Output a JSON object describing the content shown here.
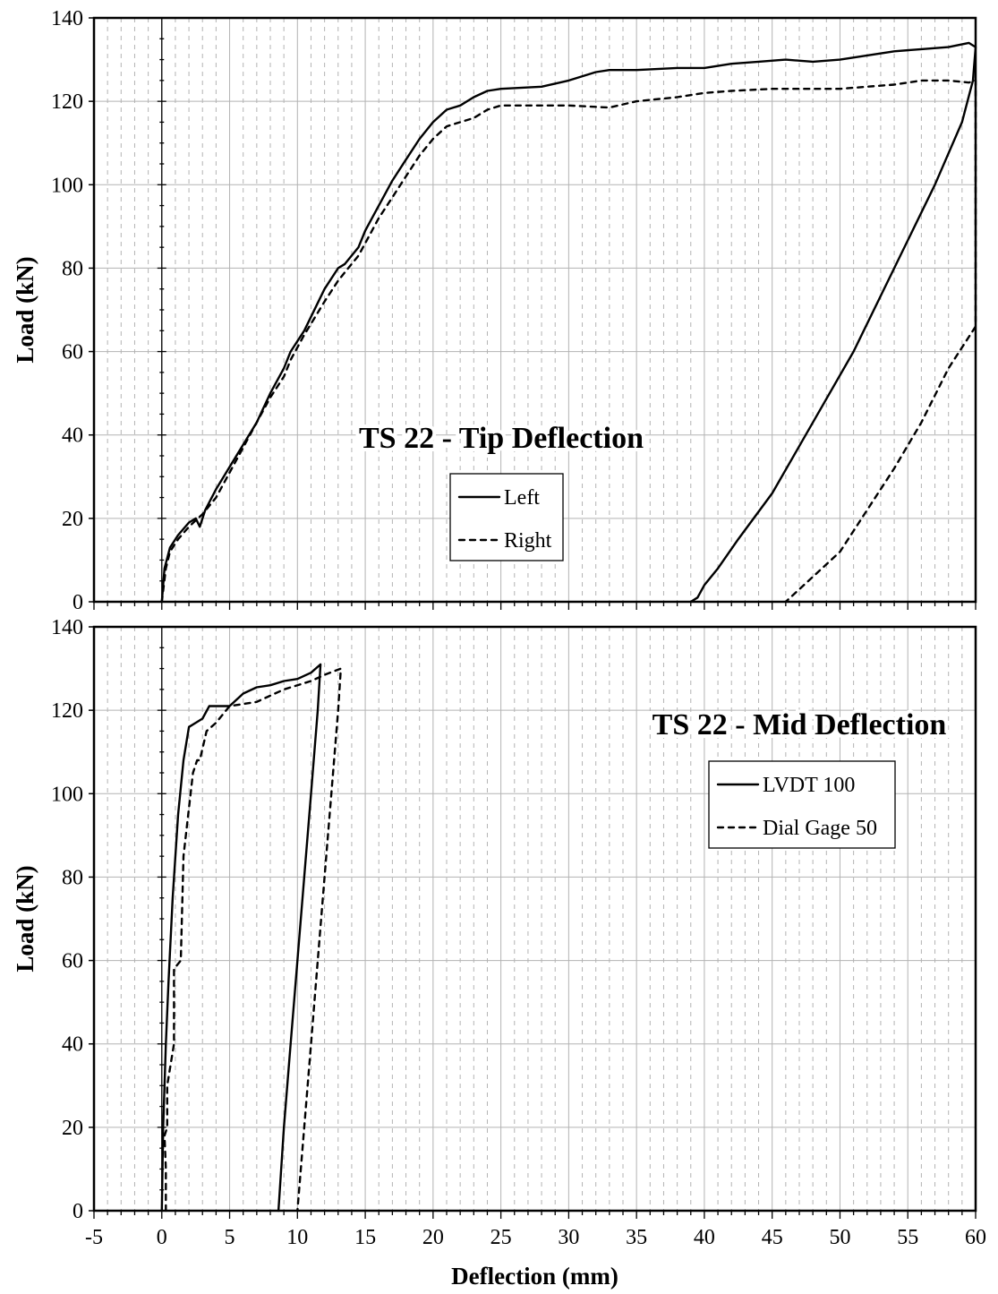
{
  "chart_data": [
    {
      "type": "line",
      "title": "TS 22 - Tip Deflection",
      "xlabel": "",
      "ylabel": "Load (kN)",
      "xlim": [
        -5,
        60
      ],
      "ylim": [
        0,
        140
      ],
      "xticks": [],
      "yticks": [
        0,
        20,
        40,
        60,
        80,
        100,
        120,
        140
      ],
      "grid": true,
      "legend_position": "center",
      "series": [
        {
          "name": "Left",
          "style": "solid",
          "x": [
            0,
            0.2,
            0.6,
            1.2,
            2,
            2.5,
            2.8,
            3.2,
            4,
            5.5,
            7,
            8,
            9,
            9.5,
            10.5,
            12,
            13,
            13.5,
            14.5,
            15,
            16,
            17,
            18,
            19,
            20,
            21,
            22,
            23,
            24,
            25,
            28,
            30,
            32,
            33,
            35,
            38,
            40,
            42,
            44,
            46,
            48,
            50,
            52,
            54,
            56,
            58,
            59.5,
            60,
            59.8,
            59,
            57,
            54,
            51,
            48,
            45,
            42.5,
            41,
            40,
            39.5,
            39
          ],
          "y": [
            0,
            8,
            13,
            16,
            19,
            20,
            18,
            22,
            27,
            35,
            43,
            50,
            56,
            60,
            65,
            75,
            80,
            81,
            85,
            89,
            95,
            101,
            106,
            111,
            115,
            118,
            119,
            121,
            122.5,
            123,
            123.5,
            125,
            127,
            127.5,
            127.5,
            128,
            128,
            129,
            129.5,
            130,
            129.5,
            130,
            131,
            132,
            132.5,
            133,
            134,
            133,
            125,
            115,
            100,
            80,
            60,
            43,
            26,
            15,
            8,
            4,
            1,
            0
          ]
        },
        {
          "name": "Right",
          "style": "dashed",
          "x": [
            0,
            0.3,
            0.6,
            1.2,
            2,
            3,
            4,
            5.5,
            7,
            8,
            9,
            9.5,
            10.5,
            12,
            13,
            13.5,
            14.5,
            15,
            16,
            17,
            18,
            19,
            20,
            21,
            22,
            23,
            24,
            25,
            30,
            33,
            35,
            38,
            40,
            42,
            45,
            48,
            50,
            52,
            54,
            56,
            58,
            59.5,
            60,
            60,
            58,
            56,
            54,
            52,
            50,
            48,
            46
          ],
          "y": [
            0,
            8,
            12,
            15,
            18,
            21,
            25,
            34,
            43,
            49,
            54,
            58,
            64,
            72,
            77,
            79,
            83,
            86,
            92,
            97,
            102,
            107,
            111,
            114,
            115,
            116,
            118,
            119,
            119,
            118.5,
            120,
            121,
            122,
            122.5,
            123,
            123,
            123,
            123.5,
            124,
            125,
            125,
            124.5,
            125,
            66,
            56,
            43,
            32,
            22,
            12,
            6,
            0
          ]
        }
      ]
    },
    {
      "type": "line",
      "title": "TS 22 - Mid Deflection",
      "xlabel": "Deflection (mm)",
      "ylabel": "Load (kN)",
      "xlim": [
        -5,
        60
      ],
      "ylim": [
        0,
        140
      ],
      "xticks": [
        -5,
        0,
        5,
        10,
        15,
        20,
        25,
        30,
        35,
        40,
        45,
        50,
        55,
        60
      ],
      "yticks": [
        0,
        20,
        40,
        60,
        80,
        100,
        120,
        140
      ],
      "grid": true,
      "legend_position": "right",
      "series": [
        {
          "name": "LVDT 100",
          "style": "solid",
          "x": [
            0,
            0.1,
            0.3,
            0.5,
            0.8,
            1.2,
            1.6,
            2,
            2.5,
            3,
            3.5,
            4,
            5,
            6,
            7,
            8,
            9,
            10,
            11,
            11.7,
            11.5,
            11,
            10.5,
            10,
            9.5,
            9,
            8.6
          ],
          "y": [
            0,
            20,
            40,
            55,
            75,
            95,
            108,
            116,
            117,
            118,
            121,
            121,
            121,
            124,
            125.5,
            126,
            127,
            127.5,
            129,
            131,
            120,
            100,
            80,
            60,
            40,
            20,
            0
          ],
          "annotations": []
        },
        {
          "name": "Dial Gage 50",
          "style": "dashed",
          "x": [
            0.3,
            0.3,
            0.2,
            0.4,
            0.4,
            0.9,
            0.9,
            1.4,
            1.6,
            2.3,
            2.6,
            2.8,
            3.3,
            4,
            5,
            7,
            9,
            11,
            12,
            13.2,
            13,
            12.5,
            12,
            11.5,
            11,
            10.5,
            10
          ],
          "y": [
            0,
            10,
            18,
            20,
            30,
            40,
            58,
            60,
            85,
            105,
            108,
            108,
            115,
            117,
            121,
            122,
            125,
            127,
            128.5,
            130,
            120,
            100,
            80,
            60,
            40,
            20,
            0
          ]
        }
      ]
    }
  ]
}
